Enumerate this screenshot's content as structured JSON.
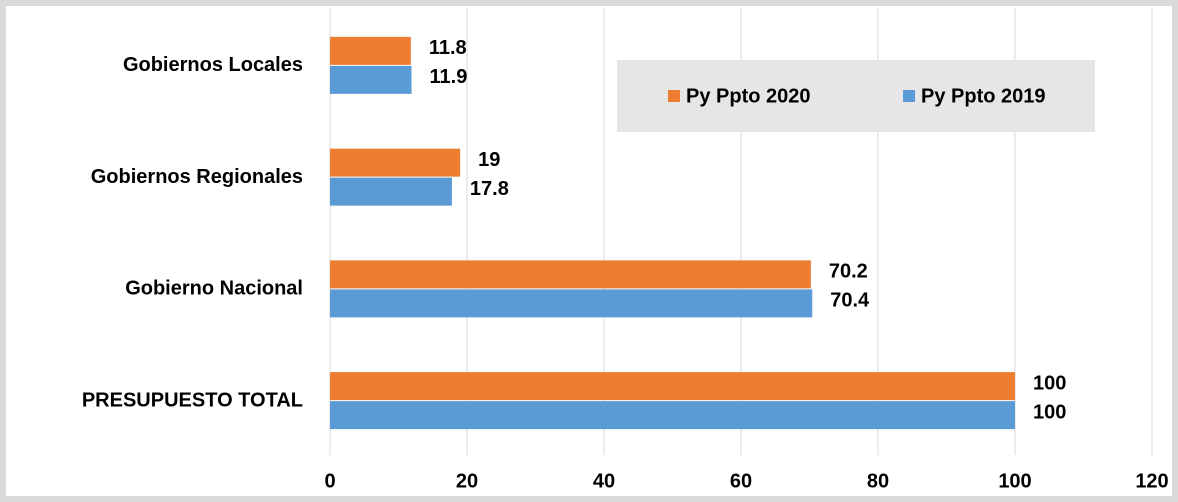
{
  "chart_data": {
    "type": "bar",
    "orientation": "horizontal",
    "categories": [
      "Gobiernos Locales",
      "Gobiernos Regionales",
      "Gobierno Nacional",
      "PRESUPUESTO TOTAL"
    ],
    "series": [
      {
        "name": "Py Ppto 2020",
        "color": "#ed7d31",
        "values": [
          11.8,
          19,
          70.2,
          100
        ]
      },
      {
        "name": "Py Ppto 2019",
        "color": "#5b9bd5",
        "values": [
          11.9,
          17.8,
          70.4,
          100
        ]
      }
    ],
    "xlim": [
      0,
      120
    ],
    "xticks": [
      0,
      20,
      40,
      60,
      80,
      100,
      120
    ],
    "grid": true,
    "legend": "upper right"
  }
}
